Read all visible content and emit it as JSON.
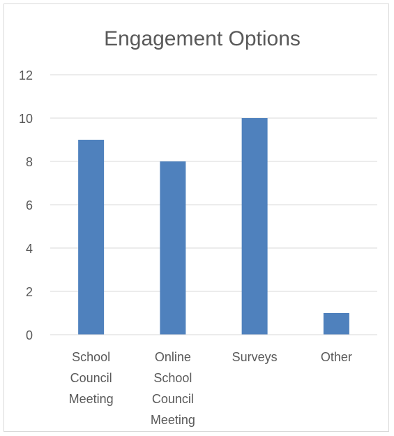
{
  "chart_data": {
    "type": "bar",
    "title": "Engagement Options",
    "xlabel": "",
    "ylabel": "",
    "categories": [
      "School Council Meeting",
      "Online School Council Meeting",
      "Surveys",
      "Other"
    ],
    "category_label_lines": [
      [
        "School",
        "Council",
        "Meeting"
      ],
      [
        "Online",
        "School",
        "Council",
        "Meeting"
      ],
      [
        "Surveys"
      ],
      [
        "Other"
      ]
    ],
    "values": [
      9,
      8,
      10,
      1
    ],
    "ylim": [
      0,
      12
    ],
    "yticks": [
      "0",
      "2",
      "4",
      "6",
      "8",
      "10",
      "12"
    ],
    "grid": true,
    "legend": "none",
    "bar_color": "#4f81bd"
  }
}
